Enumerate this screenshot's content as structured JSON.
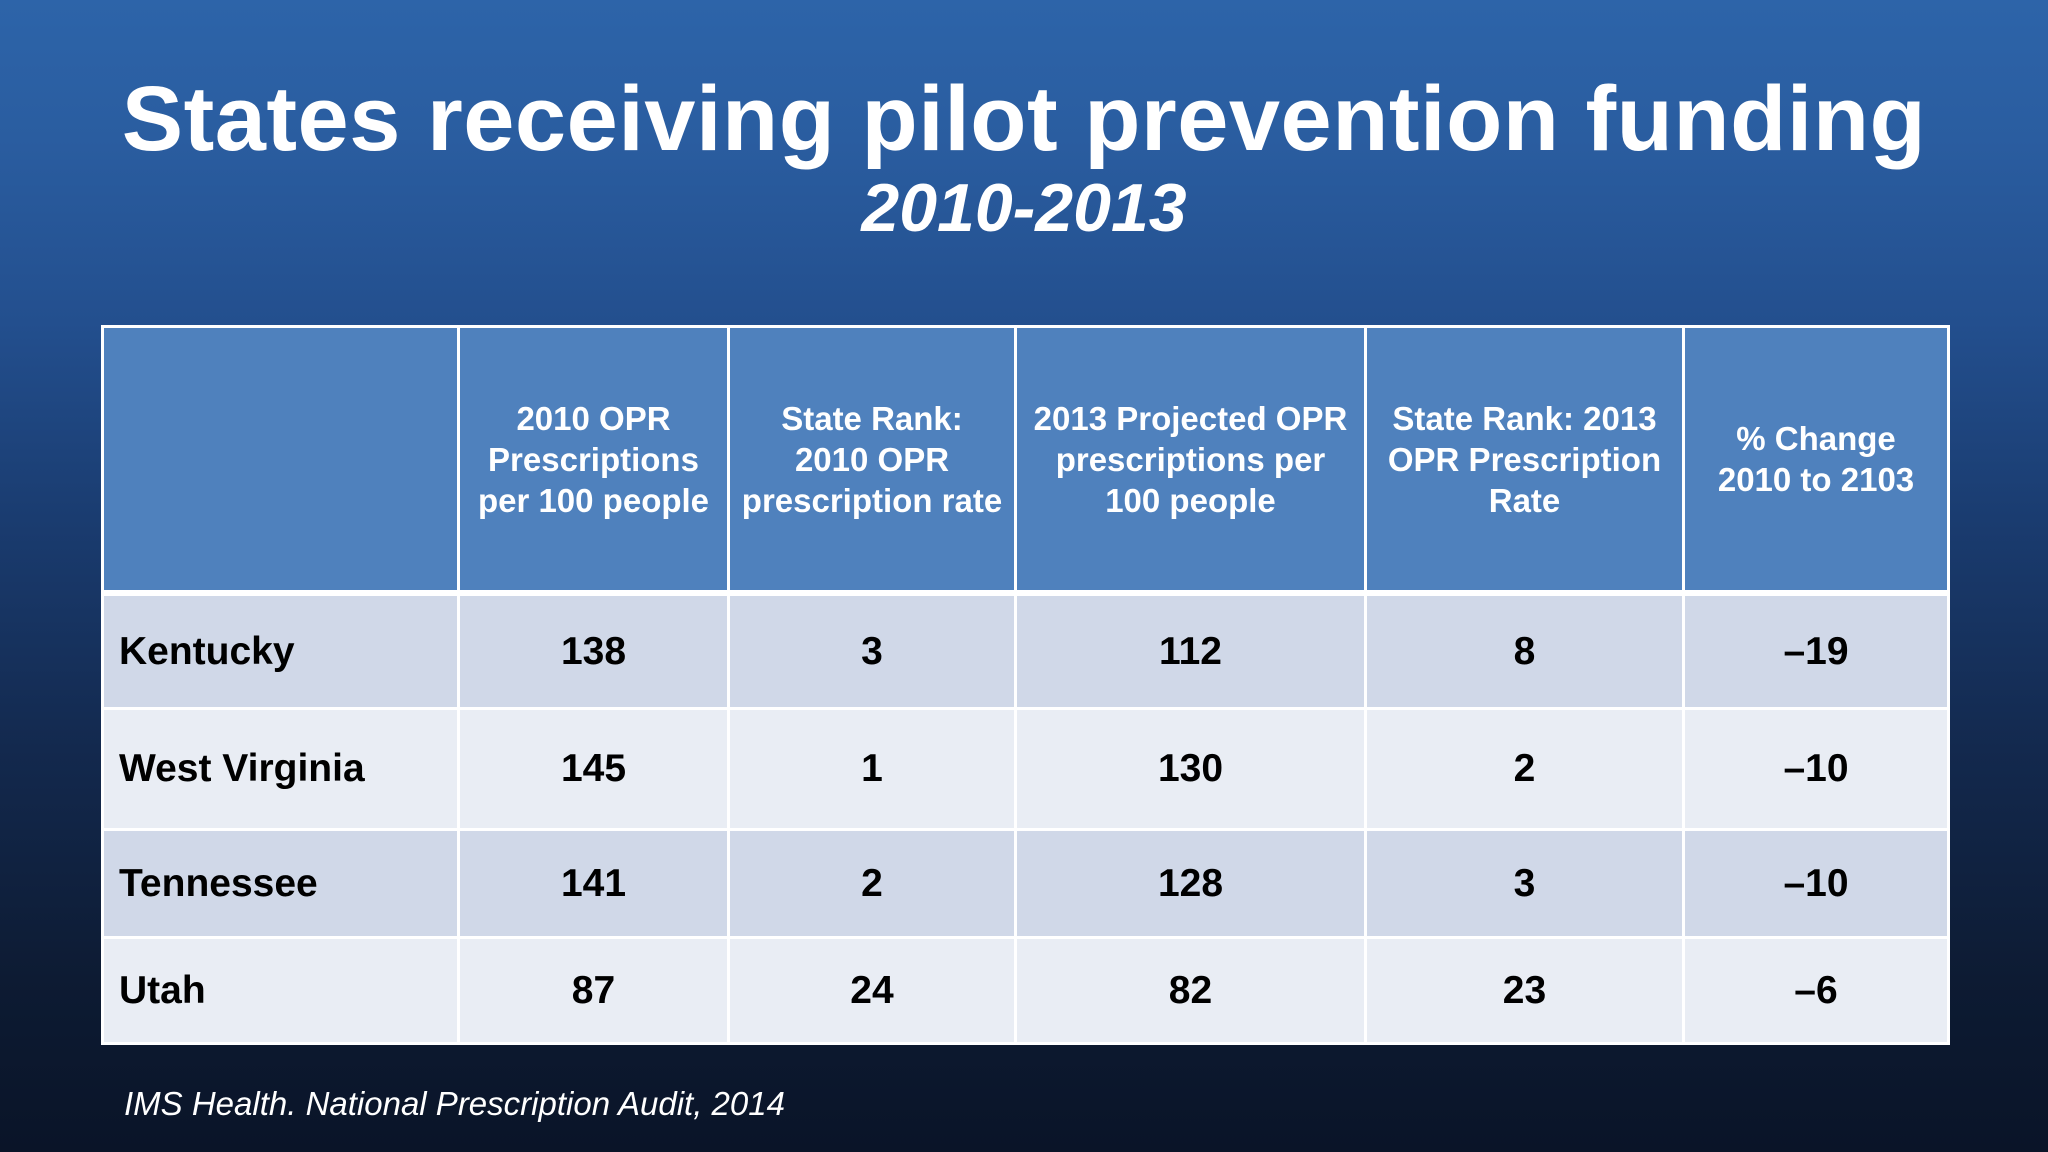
{
  "slide": {
    "title": "States receiving pilot prevention funding",
    "subtitle": "2010-2013",
    "source": "IMS Health. National Prescription Audit, 2014"
  },
  "table": {
    "headers": [
      "",
      "2010 OPR Prescriptions per 100 people",
      "State Rank: 2010 OPR prescription rate",
      "2013 Projected OPR prescriptions per 100 people",
      "State Rank: 2013 OPR Prescription Rate",
      "% Change 2010 to 2103"
    ],
    "rows": [
      [
        "Kentucky",
        "138",
        "3",
        "112",
        "8",
        "–19"
      ],
      [
        "West Virginia",
        "145",
        "1",
        "130",
        "2",
        "–10"
      ],
      [
        "Tennessee",
        "141",
        "2",
        "128",
        "3",
        "–10"
      ],
      [
        "Utah",
        "87",
        "24",
        "82",
        "23",
        "–6"
      ]
    ]
  },
  "colors": {
    "header_bg": "#4f81bd",
    "row_dark": "#d0d8e8",
    "row_light": "#e9edf4",
    "background_top": "#2d64a9",
    "background_bottom": "#0a1428"
  }
}
